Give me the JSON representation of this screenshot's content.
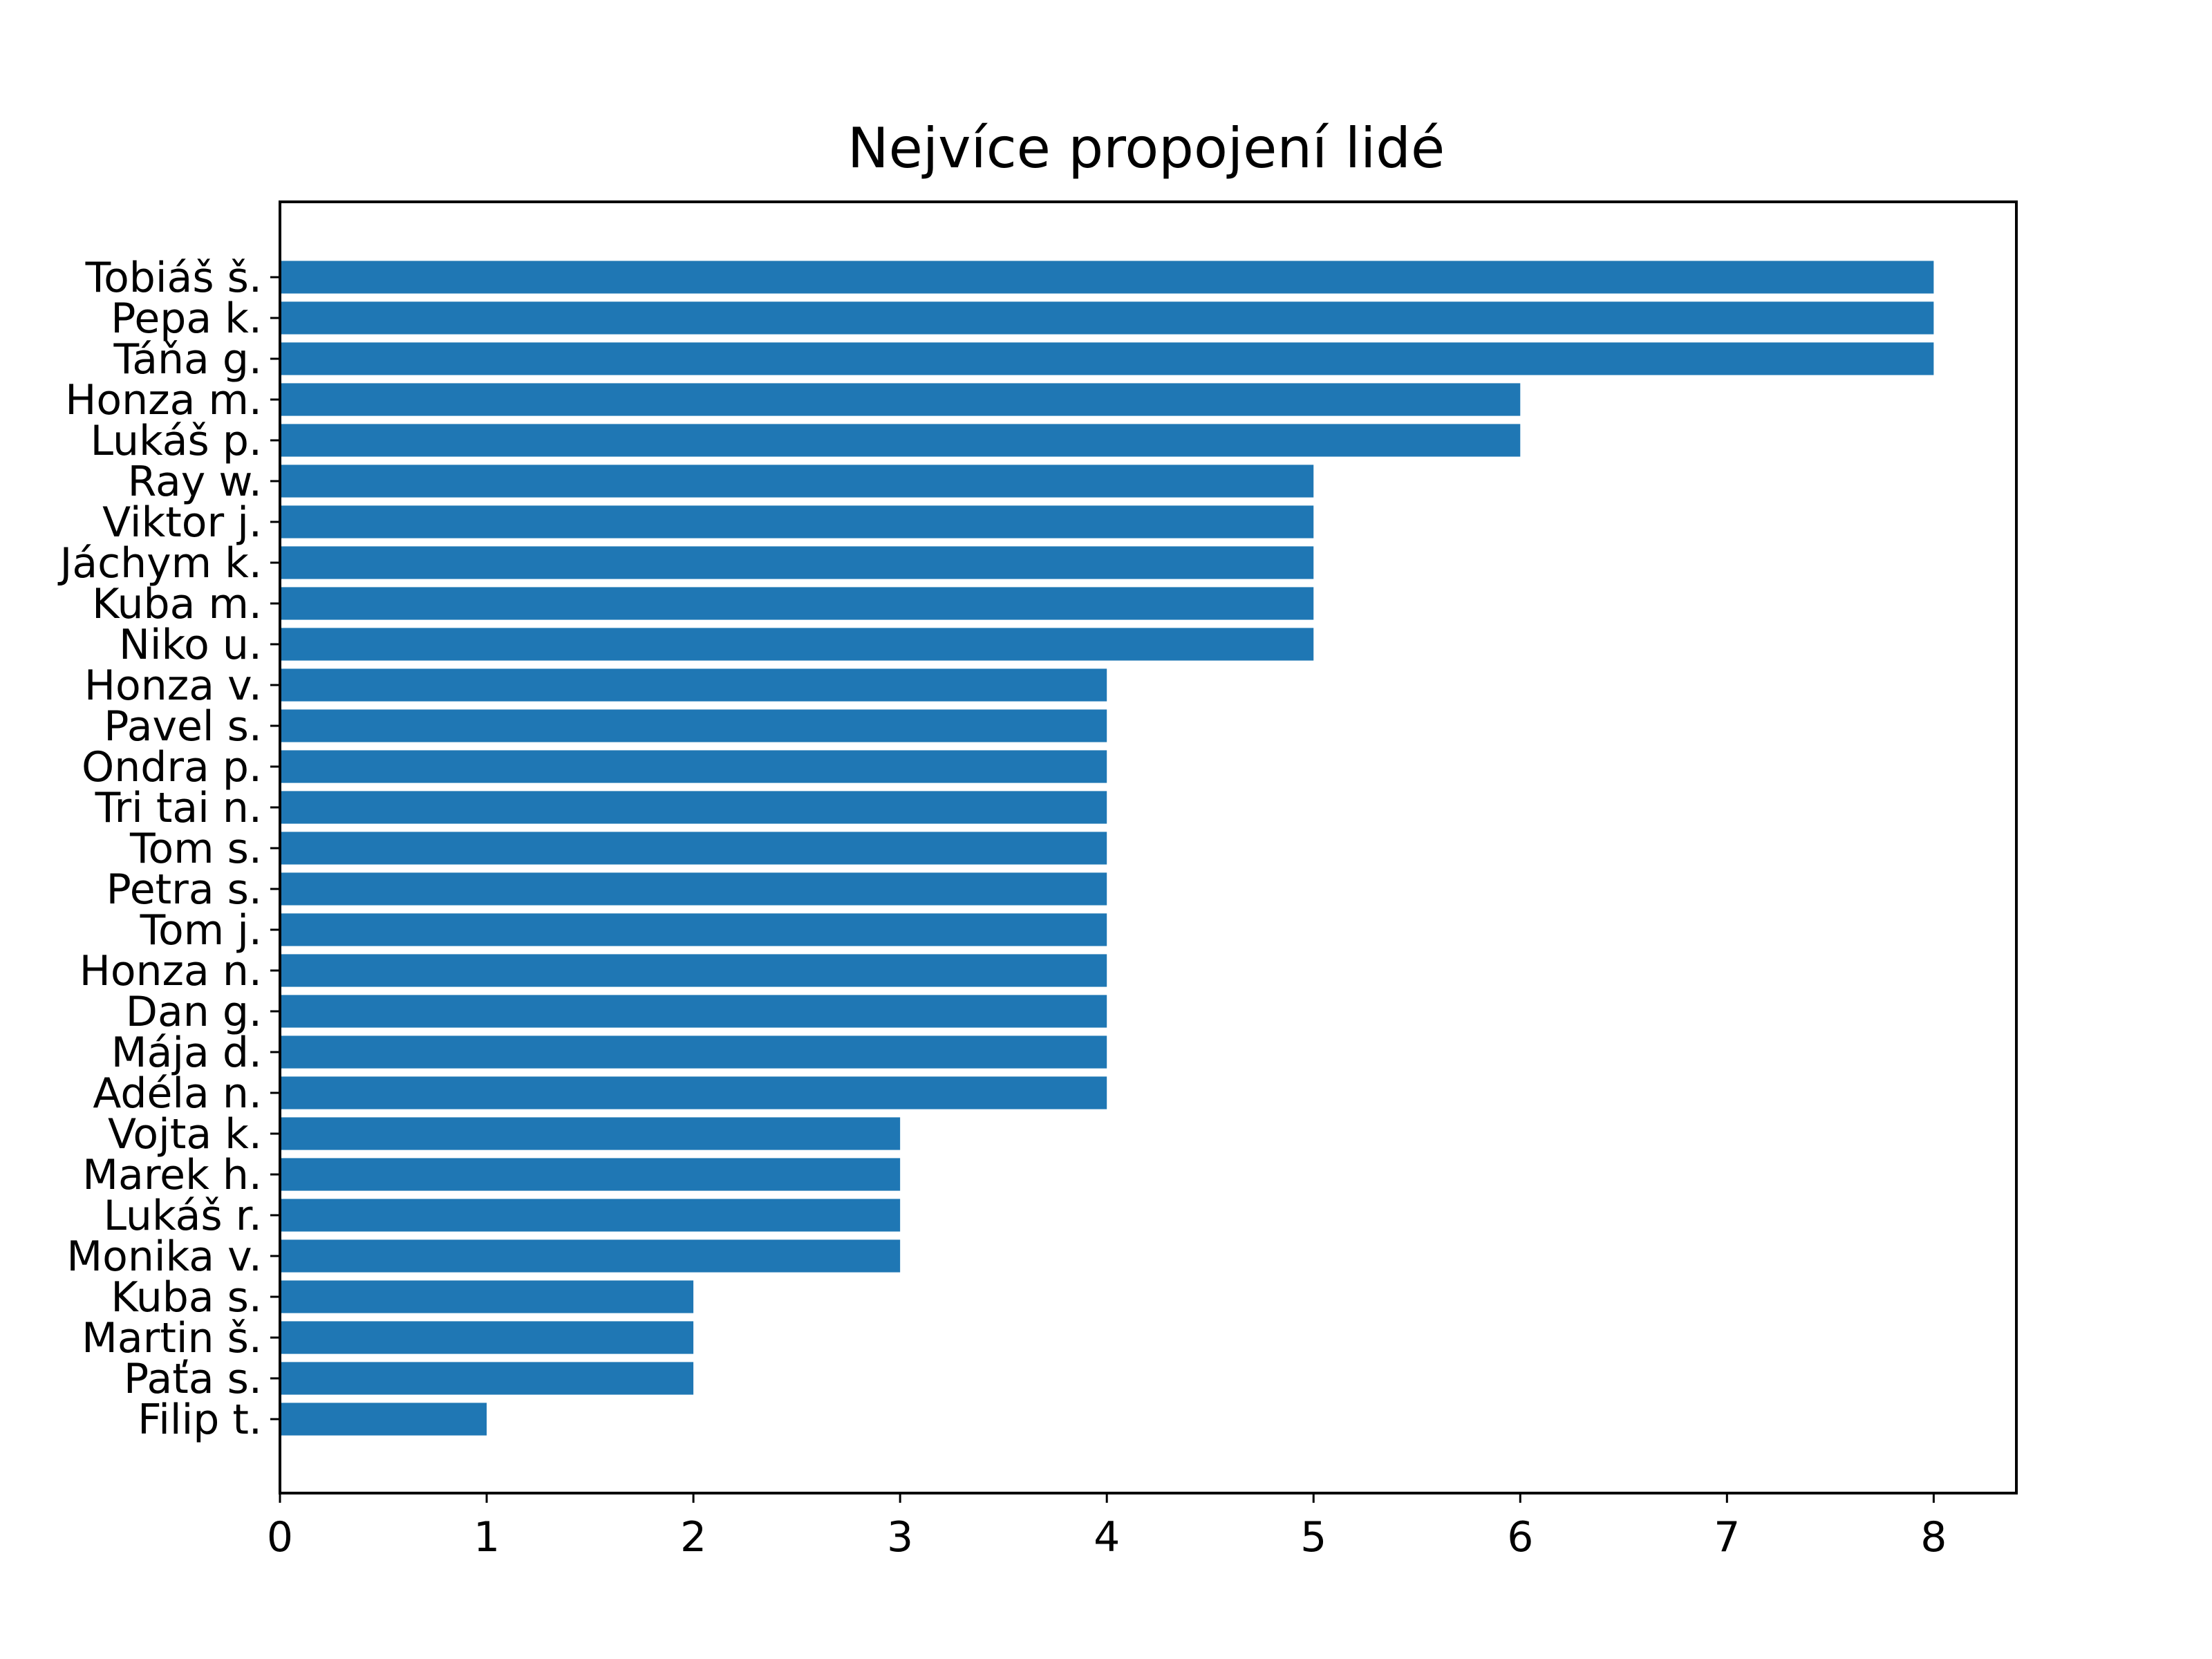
{
  "chart_data": {
    "type": "bar",
    "orientation": "horizontal",
    "title": "Nejvíce propojení lidé",
    "xlabel": "",
    "ylabel": "",
    "xlim": [
      0,
      8.4
    ],
    "xticks": [
      0,
      1,
      2,
      3,
      4,
      5,
      6,
      7,
      8
    ],
    "grid": false,
    "bar_color": "#1f77b4",
    "categories": [
      "Tobiáš š.",
      "Pepa k.",
      "Táňa g.",
      "Honza m.",
      "Lukáš p.",
      "Ray w.",
      "Viktor j.",
      "Jáchym k.",
      "Kuba m.",
      "Niko u.",
      "Honza v.",
      "Pavel s.",
      "Ondra p.",
      "Tri tai n.",
      "Tom s.",
      "Petra s.",
      "Tom j.",
      "Honza n.",
      "Dan g.",
      "Mája d.",
      "Adéla n.",
      "Vojta k.",
      "Marek h.",
      "Lukáš r.",
      "Monika v.",
      "Kuba s.",
      "Martin š.",
      "Paťa s.",
      "Filip t."
    ],
    "values": [
      8,
      8,
      8,
      6,
      6,
      5,
      5,
      5,
      5,
      5,
      4,
      4,
      4,
      4,
      4,
      4,
      4,
      4,
      4,
      4,
      4,
      3,
      3,
      3,
      3,
      2,
      2,
      2,
      1
    ]
  }
}
